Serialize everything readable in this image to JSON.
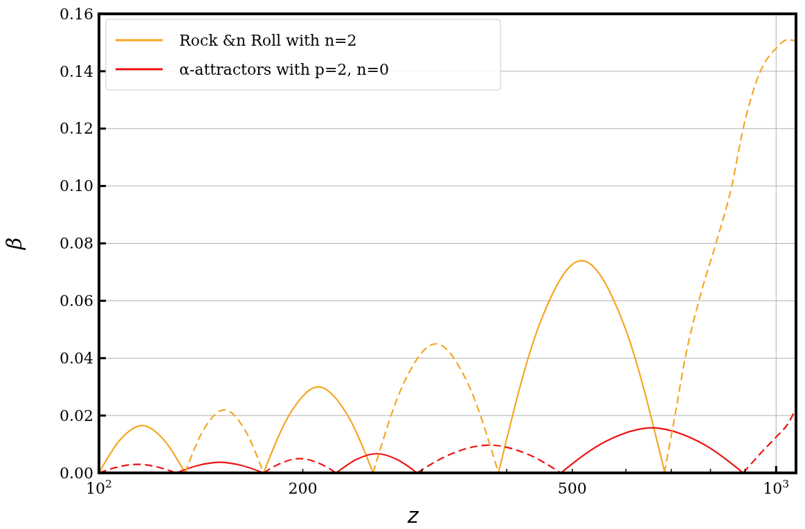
{
  "chart_data": {
    "type": "line",
    "xlabel": "z",
    "ylabel": "β",
    "log": "x",
    "grid": true,
    "legend": "top left",
    "xlim": [
      100,
      1070
    ],
    "ylim": [
      0,
      0.16
    ],
    "xticks": [
      {
        "value": 100,
        "label": "10$^{2}$"
      },
      {
        "value": 200,
        "label": "200"
      },
      {
        "value": 300,
        "label": null
      },
      {
        "value": 400,
        "label": null
      },
      {
        "value": 500,
        "label": "500"
      },
      {
        "value": 600,
        "label": null
      },
      {
        "value": 700,
        "label": null
      },
      {
        "value": 800,
        "label": null
      },
      {
        "value": 900,
        "label": null
      },
      {
        "value": 1000,
        "label": "10$^{3}$"
      }
    ],
    "yticks": [
      {
        "value": 0,
        "label": "0.00"
      },
      {
        "value": 0.02,
        "label": "0.02"
      },
      {
        "value": 0.04,
        "label": "0.04"
      },
      {
        "value": 0.06,
        "label": "0.06"
      },
      {
        "value": 0.08,
        "label": "0.08"
      },
      {
        "value": 0.1,
        "label": "0.10"
      },
      {
        "value": 0.12,
        "label": "0.12"
      },
      {
        "value": 0.14,
        "label": "0.14"
      },
      {
        "value": 0.16,
        "label": "0.16"
      }
    ],
    "series": [
      {
        "name": "Rock &n Roll with n=2",
        "color": "#f5a623",
        "line_style": "solid",
        "x": [
          100,
          107.6,
          115.8,
          124.5,
          134,
          160,
          175,
          192.1,
          210.8,
          231.4,
          254,
          320,
          389,
          448.1,
          516.2,
          594.6,
          685
        ],
        "values": [
          0,
          0.0117,
          0.0165,
          0.0117,
          0,
          null,
          0,
          0.0212,
          0.03,
          0.0212,
          0,
          null,
          0,
          0.0523,
          0.074,
          0.0523,
          0
        ]
      },
      {
        "name": "α-attractors with p=2, n=0",
        "color": "#ee1111",
        "line_style": "solid",
        "x": [
          130,
          140,
          150.8,
          162.4,
          175,
          200,
          224,
          240,
          257.1,
          275.4,
          295,
          400,
          481,
          561.6,
          655.7,
          765.7,
          894
        ],
        "values": [
          0,
          0.0026,
          0.0037,
          0.0026,
          0,
          null,
          0,
          0.0047,
          0.0067,
          0.0047,
          0,
          null,
          0,
          0.0111,
          0.0157,
          0.0111,
          0
        ]
      },
      {
        "color": "#f5a623",
        "line_style": "dashed",
        "x": [
          134,
          143.2,
          153.1,
          163.7,
          175,
          220,
          254,
          282.6,
          314.3,
          349.6,
          389,
          500,
          684,
          709,
          734,
          769,
          815,
          860,
          894,
          948,
          1000,
          1040,
          1070
        ],
        "values": [
          0,
          0.0156,
          0.022,
          0.0156,
          0,
          null,
          0,
          0.0318,
          0.045,
          0.0318,
          0,
          null,
          0,
          0.02,
          0.04,
          0.06,
          0.08,
          0.1,
          0.12,
          0.14,
          0.148,
          0.151,
          0.1505
        ]
      },
      {
        "color": "#ee1111",
        "line_style": "dashed",
        "x": [
          100,
          106.8,
          114,
          121.8,
          130,
          150,
          175,
          186.1,
          198,
          210.6,
          224,
          260,
          295,
          333.4,
          376.7,
          425.7,
          481,
          700,
          894,
          950,
          1000,
          1040,
          1070
        ],
        "values": [
          0,
          0.0021,
          0.003,
          0.0021,
          0,
          null,
          0,
          0.0035,
          0.005,
          0.0035,
          0,
          null,
          0,
          0.0069,
          0.0097,
          0.0069,
          0,
          null,
          0,
          0.007,
          0.0125,
          0.017,
          0.0225
        ]
      }
    ]
  }
}
